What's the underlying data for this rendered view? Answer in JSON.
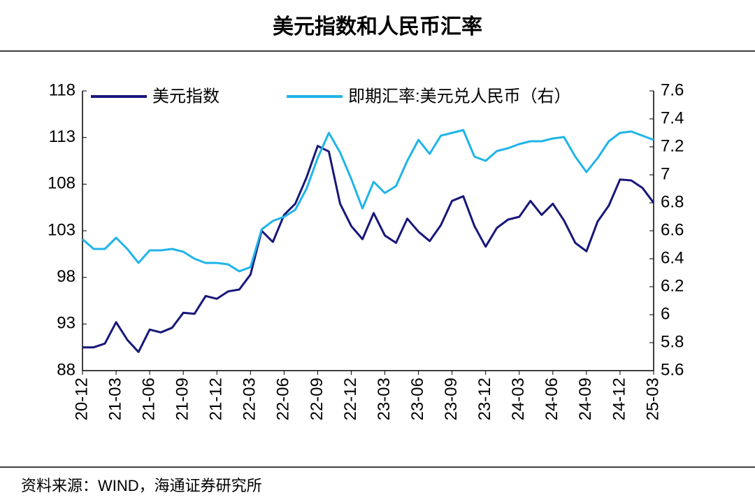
{
  "chart_data": {
    "type": "line",
    "title": "美元指数和人民币汇率",
    "source": "资料来源：WIND，海通证券研究所",
    "categories": [
      "20-12",
      null,
      null,
      "21-03",
      null,
      null,
      "21-06",
      null,
      null,
      "21-09",
      null,
      null,
      "21-12",
      null,
      null,
      "22-03",
      null,
      null,
      "22-06",
      null,
      null,
      "22-09",
      null,
      null,
      "22-12",
      null,
      null,
      "23-03",
      null,
      null,
      "23-06",
      null,
      null,
      "23-09",
      null,
      null,
      "23-12",
      null,
      null,
      "24-03",
      null,
      null,
      "24-06",
      null,
      null,
      "24-09",
      null,
      null,
      "24-12",
      null,
      null,
      "25-03"
    ],
    "series": [
      {
        "name": "美元指数",
        "color": "#17177a",
        "axis": "y",
        "values": [
          90.5,
          90.5,
          90.9,
          93.2,
          91.3,
          90.0,
          92.4,
          92.1,
          92.6,
          94.2,
          94.1,
          96.0,
          95.7,
          96.5,
          96.7,
          98.3,
          103.0,
          101.8,
          104.7,
          105.9,
          108.7,
          112.1,
          111.5,
          105.9,
          103.5,
          102.1,
          104.9,
          102.5,
          101.7,
          104.3,
          102.9,
          101.9,
          103.6,
          106.2,
          106.7,
          103.5,
          101.3,
          103.3,
          104.2,
          104.5,
          106.2,
          104.7,
          105.9,
          104.1,
          101.7,
          100.8,
          104.0,
          105.7,
          108.5,
          108.4,
          107.6,
          106.0
        ]
      },
      {
        "name": "即期汇率:美元兑人民币（右）",
        "color": "#1fb4e8",
        "axis": "y2",
        "values": [
          6.54,
          6.47,
          6.47,
          6.55,
          6.47,
          6.37,
          6.46,
          6.46,
          6.47,
          6.45,
          6.4,
          6.37,
          6.37,
          6.36,
          6.31,
          6.34,
          6.61,
          6.67,
          6.7,
          6.75,
          6.9,
          7.12,
          7.3,
          7.16,
          6.97,
          6.76,
          6.95,
          6.87,
          6.92,
          7.1,
          7.25,
          7.15,
          7.28,
          7.3,
          7.32,
          7.13,
          7.1,
          7.17,
          7.19,
          7.22,
          7.24,
          7.24,
          7.26,
          7.27,
          7.13,
          7.02,
          7.12,
          7.24,
          7.3,
          7.31,
          7.28,
          7.25
        ]
      }
    ],
    "ylim": [
      88,
      118
    ],
    "yticks": [
      88,
      93,
      98,
      103,
      108,
      113,
      118
    ],
    "y2lim": [
      5.6,
      7.6
    ],
    "y2ticks": [
      5.6,
      5.8,
      6,
      6.2,
      6.4,
      6.6,
      6.8,
      7,
      7.2,
      7.4,
      7.6
    ],
    "legend": "top"
  }
}
